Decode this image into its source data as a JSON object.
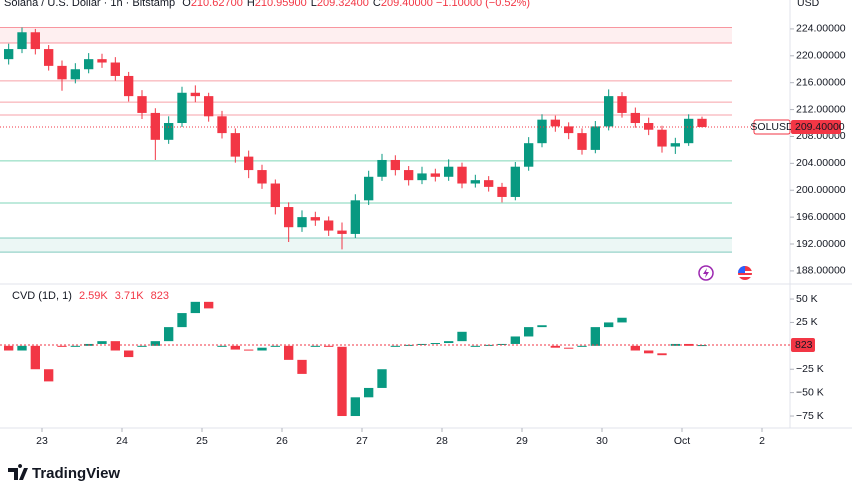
{
  "chart_data": [
    {
      "type": "candlestick",
      "symbol": "Solana / U.S. Dollar · 1h · Bitstamp",
      "ohlc_legend": [
        {
          "key": "O",
          "value": "210.62700"
        },
        {
          "key": "H",
          "value": "210.95900"
        },
        {
          "key": "L",
          "value": "209.32400"
        },
        {
          "key": "C",
          "value": "209.40000"
        }
      ],
      "change": "−1.10000 (−0.52%)",
      "currency": "USD",
      "ticker": "SOLUSD",
      "last_price": 209.4,
      "last_price_label": "209.40000",
      "up_color": "#089981",
      "down_color": "#f23645",
      "x": [
        -10,
        -6,
        -2,
        2,
        6,
        10,
        14,
        18,
        22,
        26,
        30,
        34,
        38,
        42,
        46,
        50,
        54,
        58,
        62,
        66,
        70,
        74,
        78,
        82,
        86,
        90,
        94,
        98,
        102,
        106,
        110,
        114,
        118,
        122,
        126,
        130,
        134,
        138,
        142,
        146,
        150,
        154,
        158,
        162,
        166,
        170,
        174,
        178,
        182,
        186,
        190,
        194,
        198
      ],
      "open": [
        219.5,
        221,
        223.5,
        221,
        218.5,
        216.5,
        218,
        219.5,
        219,
        217,
        214,
        211.5,
        207.5,
        210,
        214.5,
        214,
        211,
        208.5,
        205,
        203,
        201,
        197.5,
        194.5,
        196,
        195.5,
        194,
        193.5,
        198.5,
        202,
        204.5,
        203,
        201.5,
        202.5,
        202,
        203.5,
        201,
        201.5,
        200.5,
        199,
        203.5,
        207,
        210.5,
        209.5,
        208.5,
        206,
        209.5,
        214,
        211.5,
        210,
        209,
        206.5,
        207,
        210.627
      ],
      "high": [
        221.8,
        224.2,
        224,
        221.6,
        219.3,
        218.9,
        220.4,
        220.3,
        219.8,
        217.6,
        214.9,
        212.2,
        211,
        215.4,
        215.6,
        214.5,
        211.8,
        209.2,
        205.9,
        203.8,
        201.6,
        198.2,
        197,
        196.8,
        196.1,
        195.2,
        199.4,
        202.9,
        205.4,
        205.2,
        203.6,
        203.5,
        203.2,
        204.6,
        204.1,
        202.3,
        202.1,
        201.1,
        204.2,
        207.9,
        211.3,
        211.1,
        210.1,
        209.2,
        210.3,
        215,
        214.6,
        212.3,
        210.8,
        209.6,
        207.8,
        211.3,
        210.959
      ],
      "low": [
        218.7,
        220.4,
        220.2,
        217.8,
        214.8,
        215.9,
        217.4,
        218.2,
        216.3,
        213.2,
        210.6,
        204.5,
        206.9,
        209.4,
        213.1,
        210.2,
        207.7,
        204.1,
        201.8,
        200.2,
        196.4,
        192.3,
        193.8,
        194.7,
        193.2,
        191.2,
        192.9,
        197.8,
        201.4,
        202.2,
        200.7,
        200.9,
        201.3,
        201.4,
        200.3,
        200.4,
        199.8,
        198.2,
        198.5,
        202.9,
        206.4,
        208.7,
        207.6,
        205.3,
        205.5,
        208.9,
        210.8,
        209.3,
        208.2,
        205.6,
        205.4,
        206.6,
        209.324
      ],
      "close": [
        221,
        223.5,
        221,
        218.5,
        216.5,
        218,
        219.5,
        219,
        217,
        214,
        211.5,
        207.5,
        210,
        214.5,
        214,
        211,
        208.5,
        205,
        203,
        201,
        197.5,
        194.5,
        196,
        195.5,
        194,
        193.5,
        198.5,
        202,
        204.5,
        203,
        201.5,
        202.5,
        202,
        203.5,
        201,
        201.5,
        200.5,
        199,
        203.5,
        207,
        210.5,
        209.5,
        208.5,
        206,
        209.5,
        214,
        211.5,
        210,
        209,
        206.5,
        207,
        210.627,
        209.4
      ],
      "levels": [
        {
          "value": 216.26,
          "color": "#f7a1a8"
        },
        {
          "value": 213.1,
          "color": "#f7a1a8"
        },
        {
          "value": 211.2,
          "color": "#f7a1a8"
        },
        {
          "value": 204.36,
          "color": "#7fd6b8"
        },
        {
          "value": 198.1,
          "color": "#7fd6b8"
        }
      ],
      "zones": [
        {
          "from": 221.9,
          "to": 224.2,
          "color": "#f23645"
        },
        {
          "from": 190.8,
          "to": 192.9,
          "color": "#089981"
        }
      ],
      "xlim": [
        -12.6,
        224.4
      ],
      "xticks": [
        {
          "value": 0,
          "label": "23"
        },
        {
          "value": 24,
          "label": "24"
        },
        {
          "value": 48,
          "label": "25"
        },
        {
          "value": 72,
          "label": "26"
        },
        {
          "value": 96,
          "label": "27"
        },
        {
          "value": 120,
          "label": "28"
        },
        {
          "value": 144,
          "label": "29"
        },
        {
          "value": 168,
          "label": "30"
        },
        {
          "value": 192,
          "label": "Oct"
        },
        {
          "value": 216,
          "label": "2"
        }
      ],
      "ylim": [
        186.2,
        228.3
      ],
      "yticks": [
        {
          "value": 224,
          "label": "224.00000"
        },
        {
          "value": 220,
          "label": "220.00000"
        },
        {
          "value": 216,
          "label": "216.00000"
        },
        {
          "value": 212,
          "label": "212.00000"
        },
        {
          "value": 208,
          "label": "208.00000"
        },
        {
          "value": 204,
          "label": "204.00000"
        },
        {
          "value": 200,
          "label": "200.00000"
        },
        {
          "value": 196,
          "label": "196.00000"
        },
        {
          "value": 192,
          "label": "192.00000"
        },
        {
          "value": 188,
          "label": "188.00000"
        }
      ]
    },
    {
      "type": "candlestick",
      "title": "CVD (1D, 1)",
      "legend_values": [
        "2.59K",
        "3.71K",
        "823"
      ],
      "last_value": 0.823,
      "last_value_label": "823",
      "up_color": "#089981",
      "down_color": "#f23645",
      "open": [
        0,
        -5,
        0,
        -25,
        0,
        -1,
        0,
        2,
        5,
        -5,
        0,
        0,
        5,
        20,
        35,
        47,
        0,
        0,
        -4,
        -5,
        0,
        0,
        -15,
        0,
        0,
        -1,
        -75,
        -55,
        -45,
        0,
        0,
        1,
        2,
        3,
        5,
        0,
        0,
        1,
        2,
        10,
        20,
        0,
        -2,
        0,
        0,
        20,
        25,
        0,
        -5,
        -8,
        0,
        2,
        0
      ],
      "close": [
        -5,
        0,
        -25,
        -38,
        -1,
        0,
        2,
        5,
        -5,
        -12,
        0,
        5,
        20,
        35,
        47,
        40,
        0,
        -4,
        -5,
        -2,
        0,
        -15,
        -30,
        0,
        -1,
        -75,
        -55,
        -45,
        -25,
        0,
        1,
        2,
        3,
        5,
        15,
        0,
        1,
        2,
        10,
        20,
        22,
        -2,
        -3,
        0,
        20,
        25,
        30,
        -5,
        -8,
        -10,
        2,
        0,
        0.823
      ],
      "ylim": [
        -87.8,
        65
      ],
      "yticks": [
        {
          "value": 50,
          "label": "50 K"
        },
        {
          "value": 25,
          "label": "25 K"
        },
        {
          "value": -25,
          "label": "−25 K"
        },
        {
          "value": -50,
          "label": "−50 K"
        },
        {
          "value": -75,
          "label": "−75 K"
        }
      ]
    }
  ],
  "footer": {
    "brand": "TradingView"
  }
}
